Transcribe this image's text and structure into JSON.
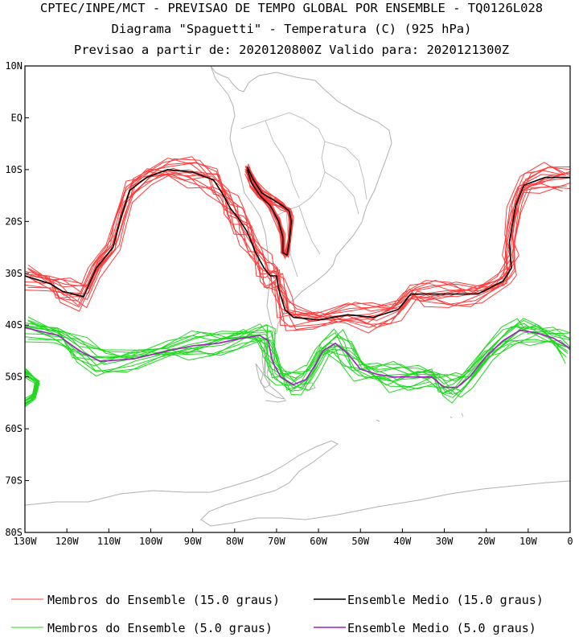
{
  "header": {
    "line1": "CPTEC/INPE/MCT - PREVISAO DE TEMPO GLOBAL POR ENSEMBLE - TQ0126L028",
    "line2": "Diagrama \"Spaguetti\" - Temperatura (C) (925 hPa)",
    "line3": "Previsao a partir de: 2020120800Z  Valido para: 2020121300Z"
  },
  "map": {
    "lon_range": [
      -130,
      0
    ],
    "lat_range": [
      -80,
      10
    ],
    "land_color": "#b0b0b0",
    "lat_ticks": [
      {
        "lat": 10,
        "label": "10N"
      },
      {
        "lat": 0,
        "label": "EQ"
      },
      {
        "lat": -10,
        "label": "10S"
      },
      {
        "lat": -20,
        "label": "20S"
      },
      {
        "lat": -30,
        "label": "30S"
      },
      {
        "lat": -40,
        "label": "40S"
      },
      {
        "lat": -50,
        "label": "50S"
      },
      {
        "lat": -60,
        "label": "60S"
      },
      {
        "lat": -70,
        "label": "70S"
      },
      {
        "lat": -80,
        "label": "80S"
      }
    ],
    "lon_ticks": [
      {
        "lon": -130,
        "label": "130W"
      },
      {
        "lon": -120,
        "label": "120W"
      },
      {
        "lon": -110,
        "label": "110W"
      },
      {
        "lon": -100,
        "label": "100W"
      },
      {
        "lon": -90,
        "label": "90W"
      },
      {
        "lon": -80,
        "label": "80W"
      },
      {
        "lon": -70,
        "label": "70W"
      },
      {
        "lon": -60,
        "label": "60W"
      },
      {
        "lon": -50,
        "label": "50W"
      },
      {
        "lon": -40,
        "label": "40W"
      },
      {
        "lon": -30,
        "label": "30W"
      },
      {
        "lon": -20,
        "label": "20W"
      },
      {
        "lon": -10,
        "label": "10W"
      },
      {
        "lon": 0,
        "label": "0"
      }
    ],
    "contour_15": {
      "color": "#ff3b3b",
      "mean_color": "#000000",
      "members": 14,
      "mean_path": [
        [
          -130,
          -30.5
        ],
        [
          -124,
          -32
        ],
        [
          -121,
          -33.5
        ],
        [
          -116,
          -34.5
        ],
        [
          -113,
          -29
        ],
        [
          -109,
          -25
        ],
        [
          -107,
          -19
        ],
        [
          -105,
          -14
        ],
        [
          -101,
          -11.5
        ],
        [
          -96,
          -10
        ],
        [
          -90,
          -10.5
        ],
        [
          -85,
          -12
        ],
        [
          -83,
          -14.5
        ],
        [
          -81,
          -17.5
        ],
        [
          -79,
          -19.5
        ],
        [
          -77,
          -22
        ],
        [
          -75,
          -26
        ],
        [
          -73,
          -29
        ],
        [
          -71.5,
          -30.5
        ],
        [
          -70,
          -30.5
        ],
        [
          -69.5,
          -33
        ],
        [
          -68,
          -37
        ],
        [
          -66,
          -38.5
        ],
        [
          -60,
          -39
        ],
        [
          -53,
          -38
        ],
        [
          -47,
          -38.5
        ],
        [
          -41,
          -37
        ],
        [
          -38,
          -34
        ],
        [
          -34,
          -34
        ],
        [
          -28,
          -34
        ],
        [
          -22,
          -34
        ],
        [
          -16,
          -31.5
        ],
        [
          -14,
          -29
        ],
        [
          -14.5,
          -24
        ],
        [
          -13,
          -17
        ],
        [
          -11,
          -13
        ],
        [
          -6,
          -11.5
        ],
        [
          0,
          -11.5
        ]
      ],
      "andes_path": [
        [
          -77,
          -9.5
        ],
        [
          -75.5,
          -12
        ],
        [
          -73.5,
          -14.5
        ],
        [
          -70.5,
          -16
        ],
        [
          -68.5,
          -17
        ],
        [
          -67,
          -18
        ],
        [
          -66.5,
          -20
        ],
        [
          -67,
          -24
        ],
        [
          -67.5,
          -26.5
        ],
        [
          -68.5,
          -26
        ],
        [
          -68.5,
          -23
        ],
        [
          -69.5,
          -20
        ],
        [
          -71.5,
          -17
        ],
        [
          -74,
          -15
        ],
        [
          -76,
          -12.5
        ],
        [
          -77,
          -10
        ]
      ]
    },
    "contour_5": {
      "color": "#1fd81f",
      "mean_color": "#a020c0",
      "members": 14,
      "mean_path": [
        [
          -130,
          -40.5
        ],
        [
          -122,
          -42
        ],
        [
          -117,
          -45
        ],
        [
          -112,
          -47
        ],
        [
          -104,
          -46.5
        ],
        [
          -96,
          -45
        ],
        [
          -90,
          -44
        ],
        [
          -84,
          -43.5
        ],
        [
          -78,
          -42.5
        ],
        [
          -74,
          -42
        ],
        [
          -72,
          -43
        ],
        [
          -71,
          -47
        ],
        [
          -69,
          -50
        ],
        [
          -66,
          -51.5
        ],
        [
          -63,
          -50.5
        ],
        [
          -61,
          -48
        ],
        [
          -59,
          -45
        ],
        [
          -56,
          -43.5
        ],
        [
          -53,
          -45.5
        ],
        [
          -50,
          -48.5
        ],
        [
          -46,
          -49.5
        ],
        [
          -42,
          -50
        ],
        [
          -37,
          -50
        ],
        [
          -33,
          -50
        ],
        [
          -30,
          -52
        ],
        [
          -27,
          -52
        ],
        [
          -24,
          -50
        ],
        [
          -20,
          -46
        ],
        [
          -16,
          -43
        ],
        [
          -12,
          -41
        ],
        [
          -8,
          -41.5
        ],
        [
          -4,
          -42.5
        ],
        [
          0,
          -44.5
        ]
      ],
      "side_path": [
        [
          -130,
          -49
        ],
        [
          -127,
          -51
        ],
        [
          -128,
          -54
        ],
        [
          -130,
          -55
        ]
      ]
    }
  },
  "legend": {
    "items": [
      {
        "label": "Membros do Ensemble (15.0 graus)",
        "color": "#ff3b3b"
      },
      {
        "label": "Ensemble Medio (15.0 graus)",
        "color": "#000000"
      },
      {
        "label": "Membros do Ensemble (5.0 graus)",
        "color": "#1fd81f"
      },
      {
        "label": "Ensemble Medio (5.0 graus)",
        "color": "#a020c0"
      }
    ]
  }
}
